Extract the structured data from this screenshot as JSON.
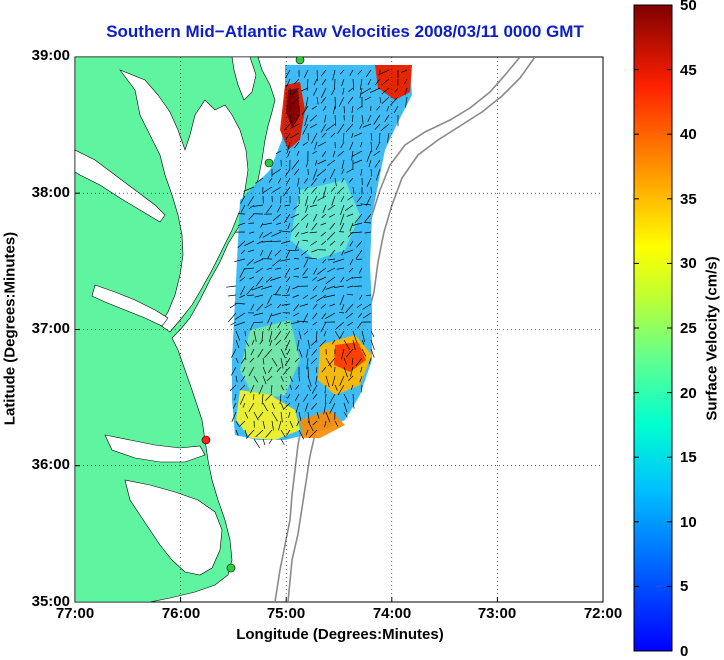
{
  "title": "Southern Mid−Atlantic Raw Velocities 2008/03/11 0000 GMT",
  "x_axis": {
    "label": "Longitude (Degrees:Minutes)",
    "ticks": [
      "77:00",
      "76:00",
      "75:00",
      "74:00",
      "73:00",
      "72:00"
    ]
  },
  "y_axis": {
    "label": "Latitude (Degrees:Minutes)",
    "ticks": [
      "39:00",
      "38:00",
      "37:00",
      "36:00",
      "35:00"
    ]
  },
  "colorbar": {
    "label": "Surface Velocity (cm/s)",
    "ticks": [
      "0",
      "5",
      "10",
      "15",
      "20",
      "25",
      "30",
      "35",
      "40",
      "45",
      "50"
    ],
    "min": 0,
    "max": 50
  },
  "map_extent": {
    "lon": [
      -77,
      -72
    ],
    "lat": [
      35,
      39
    ]
  },
  "colors": {
    "land": "#5ff5a0",
    "title": "#0b1ec9",
    "station_active": "#2ecc40",
    "station_inactive": "#ff2020"
  }
}
